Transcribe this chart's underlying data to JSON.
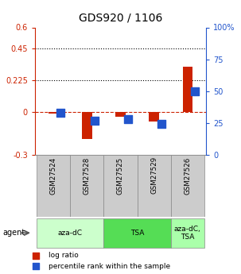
{
  "title": "GDS920 / 1106",
  "samples": [
    "GSM27524",
    "GSM27528",
    "GSM27525",
    "GSM27529",
    "GSM27526"
  ],
  "log_ratio": [
    -0.01,
    -0.19,
    -0.03,
    -0.065,
    0.32
  ],
  "percentile_rank_pct": [
    33,
    27,
    28,
    24.5,
    50
  ],
  "ylim_left": [
    -0.3,
    0.6
  ],
  "ylim_right": [
    0,
    100
  ],
  "yticks_left": [
    -0.3,
    0.0,
    0.225,
    0.45,
    0.6
  ],
  "yticks_right": [
    0,
    25,
    50,
    75,
    100
  ],
  "ytick_labels_left": [
    "-0.3",
    "0",
    "0.225",
    "0.45",
    "0.6"
  ],
  "ytick_labels_right": [
    "0",
    "25",
    "50",
    "75",
    "100%"
  ],
  "hlines": [
    0.45,
    0.225
  ],
  "zero_line": 0.0,
  "bar_color": "#cc2200",
  "dot_color": "#2255cc",
  "bar_width": 0.3,
  "dot_size": 45,
  "agent_groups": [
    {
      "label": "aza-dC",
      "start": 0,
      "end": 1,
      "color": "#ccffcc"
    },
    {
      "label": "TSA",
      "start": 2,
      "end": 3,
      "color": "#66dd66"
    },
    {
      "label": "aza-dC,\nTSA",
      "start": 4,
      "end": 4,
      "color": "#aaffaa"
    }
  ],
  "legend_bar_label": "log ratio",
  "legend_dot_label": "percentile rank within the sample",
  "agent_label": "agent",
  "left_axis_color": "#cc2200",
  "right_axis_color": "#2255cc",
  "title_fontsize": 10,
  "tick_fontsize": 7,
  "label_fontsize": 7
}
